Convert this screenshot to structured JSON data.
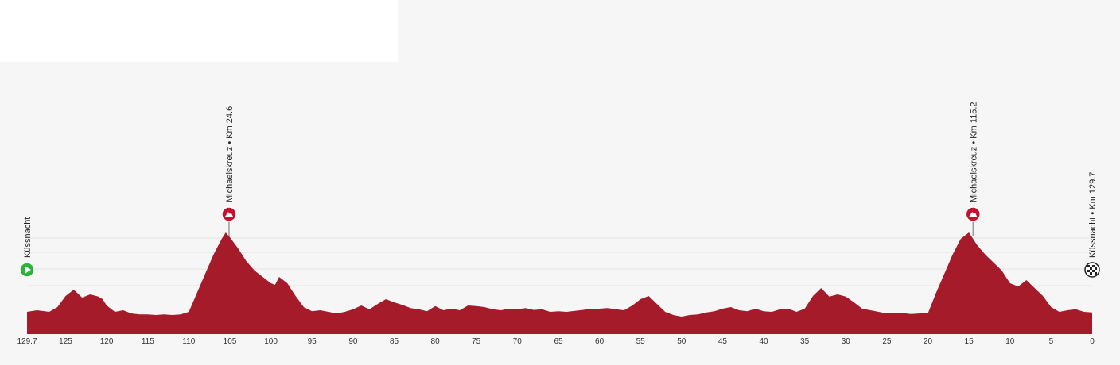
{
  "colors": {
    "profile_fill": "#a51b2a",
    "background": "#f6f6f6",
    "grid": "#e4e4e4",
    "start_marker": "#2ab53a",
    "climb_marker": "#c8102e",
    "label_text": "#222222",
    "leader_line": "#9a9a9a"
  },
  "chart_data": {
    "type": "area",
    "title": "",
    "xlabel": "",
    "ylabel": "",
    "x_reversed": true,
    "xlim": [
      129.7,
      0
    ],
    "grid": true,
    "x_tick_values": [
      129.7,
      125,
      120,
      115,
      110,
      105,
      100,
      95,
      90,
      85,
      80,
      75,
      70,
      65,
      60,
      55,
      50,
      45,
      40,
      35,
      30,
      25,
      20,
      15,
      10,
      5,
      0
    ],
    "x_tick_labels": [
      "129.7",
      "125",
      "120",
      "115",
      "110",
      "105",
      "100",
      "95",
      "90",
      "85",
      "80",
      "75",
      "70",
      "65",
      "60",
      "55",
      "50",
      "45",
      "40",
      "35",
      "30",
      "25",
      "20",
      "15",
      "10",
      "5",
      "0"
    ],
    "series": [
      {
        "km": [
          129.7,
          128.5,
          127,
          126,
          125,
          124,
          123,
          122,
          121,
          120.5,
          120,
          119,
          118,
          117,
          116,
          115,
          114,
          113,
          112,
          111,
          110,
          109,
          108,
          107,
          106,
          105.5,
          105,
          104,
          103,
          102,
          101,
          100,
          99.5,
          99,
          98,
          97,
          96,
          95,
          94,
          93,
          92,
          91,
          90,
          89,
          88,
          87,
          86,
          85,
          84,
          83,
          82,
          81,
          80,
          79,
          78,
          77,
          76,
          75,
          74,
          73,
          72,
          71,
          70,
          69,
          68,
          67,
          66,
          65,
          64,
          63,
          62,
          61,
          60,
          59,
          58,
          57,
          56,
          55,
          54,
          53,
          52,
          51,
          50,
          49,
          48,
          47,
          46,
          45,
          44,
          43,
          42,
          41,
          40,
          39,
          38,
          37,
          36,
          35,
          34,
          33,
          32,
          31,
          30,
          29,
          28,
          27,
          26,
          25,
          24,
          23,
          22,
          21,
          20,
          19,
          18,
          17,
          16,
          15,
          14.5,
          14,
          13,
          12,
          11,
          10,
          9,
          8,
          7,
          6,
          5,
          4,
          3,
          2,
          1,
          0
        ],
        "elev": [
          470,
          475,
          470,
          485,
          520,
          540,
          515,
          525,
          518,
          510,
          490,
          470,
          475,
          465,
          462,
          462,
          460,
          462,
          460,
          462,
          470,
          530,
          590,
          650,
          700,
          720,
          705,
          670,
          630,
          600,
          580,
          560,
          555,
          580,
          560,
          520,
          485,
          472,
          475,
          470,
          465,
          470,
          478,
          490,
          478,
          495,
          510,
          500,
          492,
          482,
          478,
          472,
          488,
          475,
          480,
          475,
          490,
          488,
          485,
          478,
          475,
          480,
          478,
          482,
          476,
          478,
          470,
          472,
          470,
          473,
          476,
          480,
          480,
          482,
          478,
          475,
          490,
          510,
          520,
          495,
          470,
          460,
          455,
          460,
          462,
          468,
          472,
          480,
          485,
          475,
          472,
          480,
          472,
          470,
          478,
          480,
          470,
          480,
          520,
          545,
          518,
          525,
          518,
          500,
          480,
          475,
          470,
          465,
          465,
          466,
          463,
          465,
          465,
          530,
          590,
          650,
          700,
          720,
          700,
          680,
          650,
          625,
          600,
          560,
          550,
          570,
          545,
          520,
          485,
          470,
          475,
          478,
          470,
          468
        ]
      }
    ],
    "waypoints": [
      {
        "km": 129.7,
        "label": "Küssnacht",
        "type": "start",
        "icon": "play-icon"
      },
      {
        "km": 105.1,
        "label": "Michaelskreuz • Km 24.6",
        "type": "climb",
        "icon": "mountain-icon"
      },
      {
        "km": 14.5,
        "label": "Michaelskreuz • Km 115.2",
        "type": "climb",
        "icon": "mountain-icon"
      },
      {
        "km": 0,
        "label": "Küssnacht • Km 129.7",
        "type": "finish",
        "icon": "checkered-flag-icon"
      }
    ]
  }
}
